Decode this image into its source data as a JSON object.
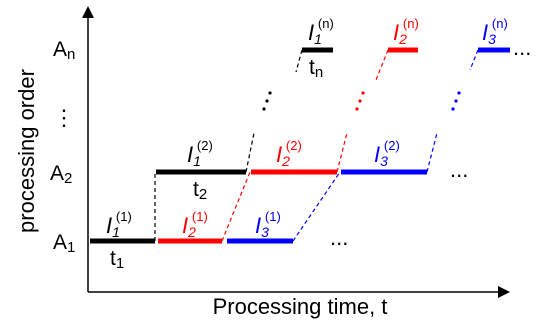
{
  "axes": {
    "x_label": "Processing time, t",
    "y_label": "processing order"
  },
  "rows": {
    "a1": "A",
    "a1_sub": "1",
    "a2": "A",
    "a2_sub": "2",
    "an": "A",
    "an_sub": "n",
    "vdots": "⋮"
  },
  "tasks": {
    "i_letter": "I",
    "sub1": "1",
    "sub2": "2",
    "sub3": "3",
    "sup1": "(1)",
    "sup2": "(2)",
    "supn": "(n)"
  },
  "times": {
    "t1": "t",
    "t1_sub": "1",
    "t2": "t",
    "t2_sub": "2",
    "tn": "t",
    "tn_sub": "n"
  },
  "ellipsis": "...",
  "colors": {
    "task1": "#000000",
    "task2": "#ff0000",
    "task3": "#0000ff",
    "axis": "#000000"
  }
}
